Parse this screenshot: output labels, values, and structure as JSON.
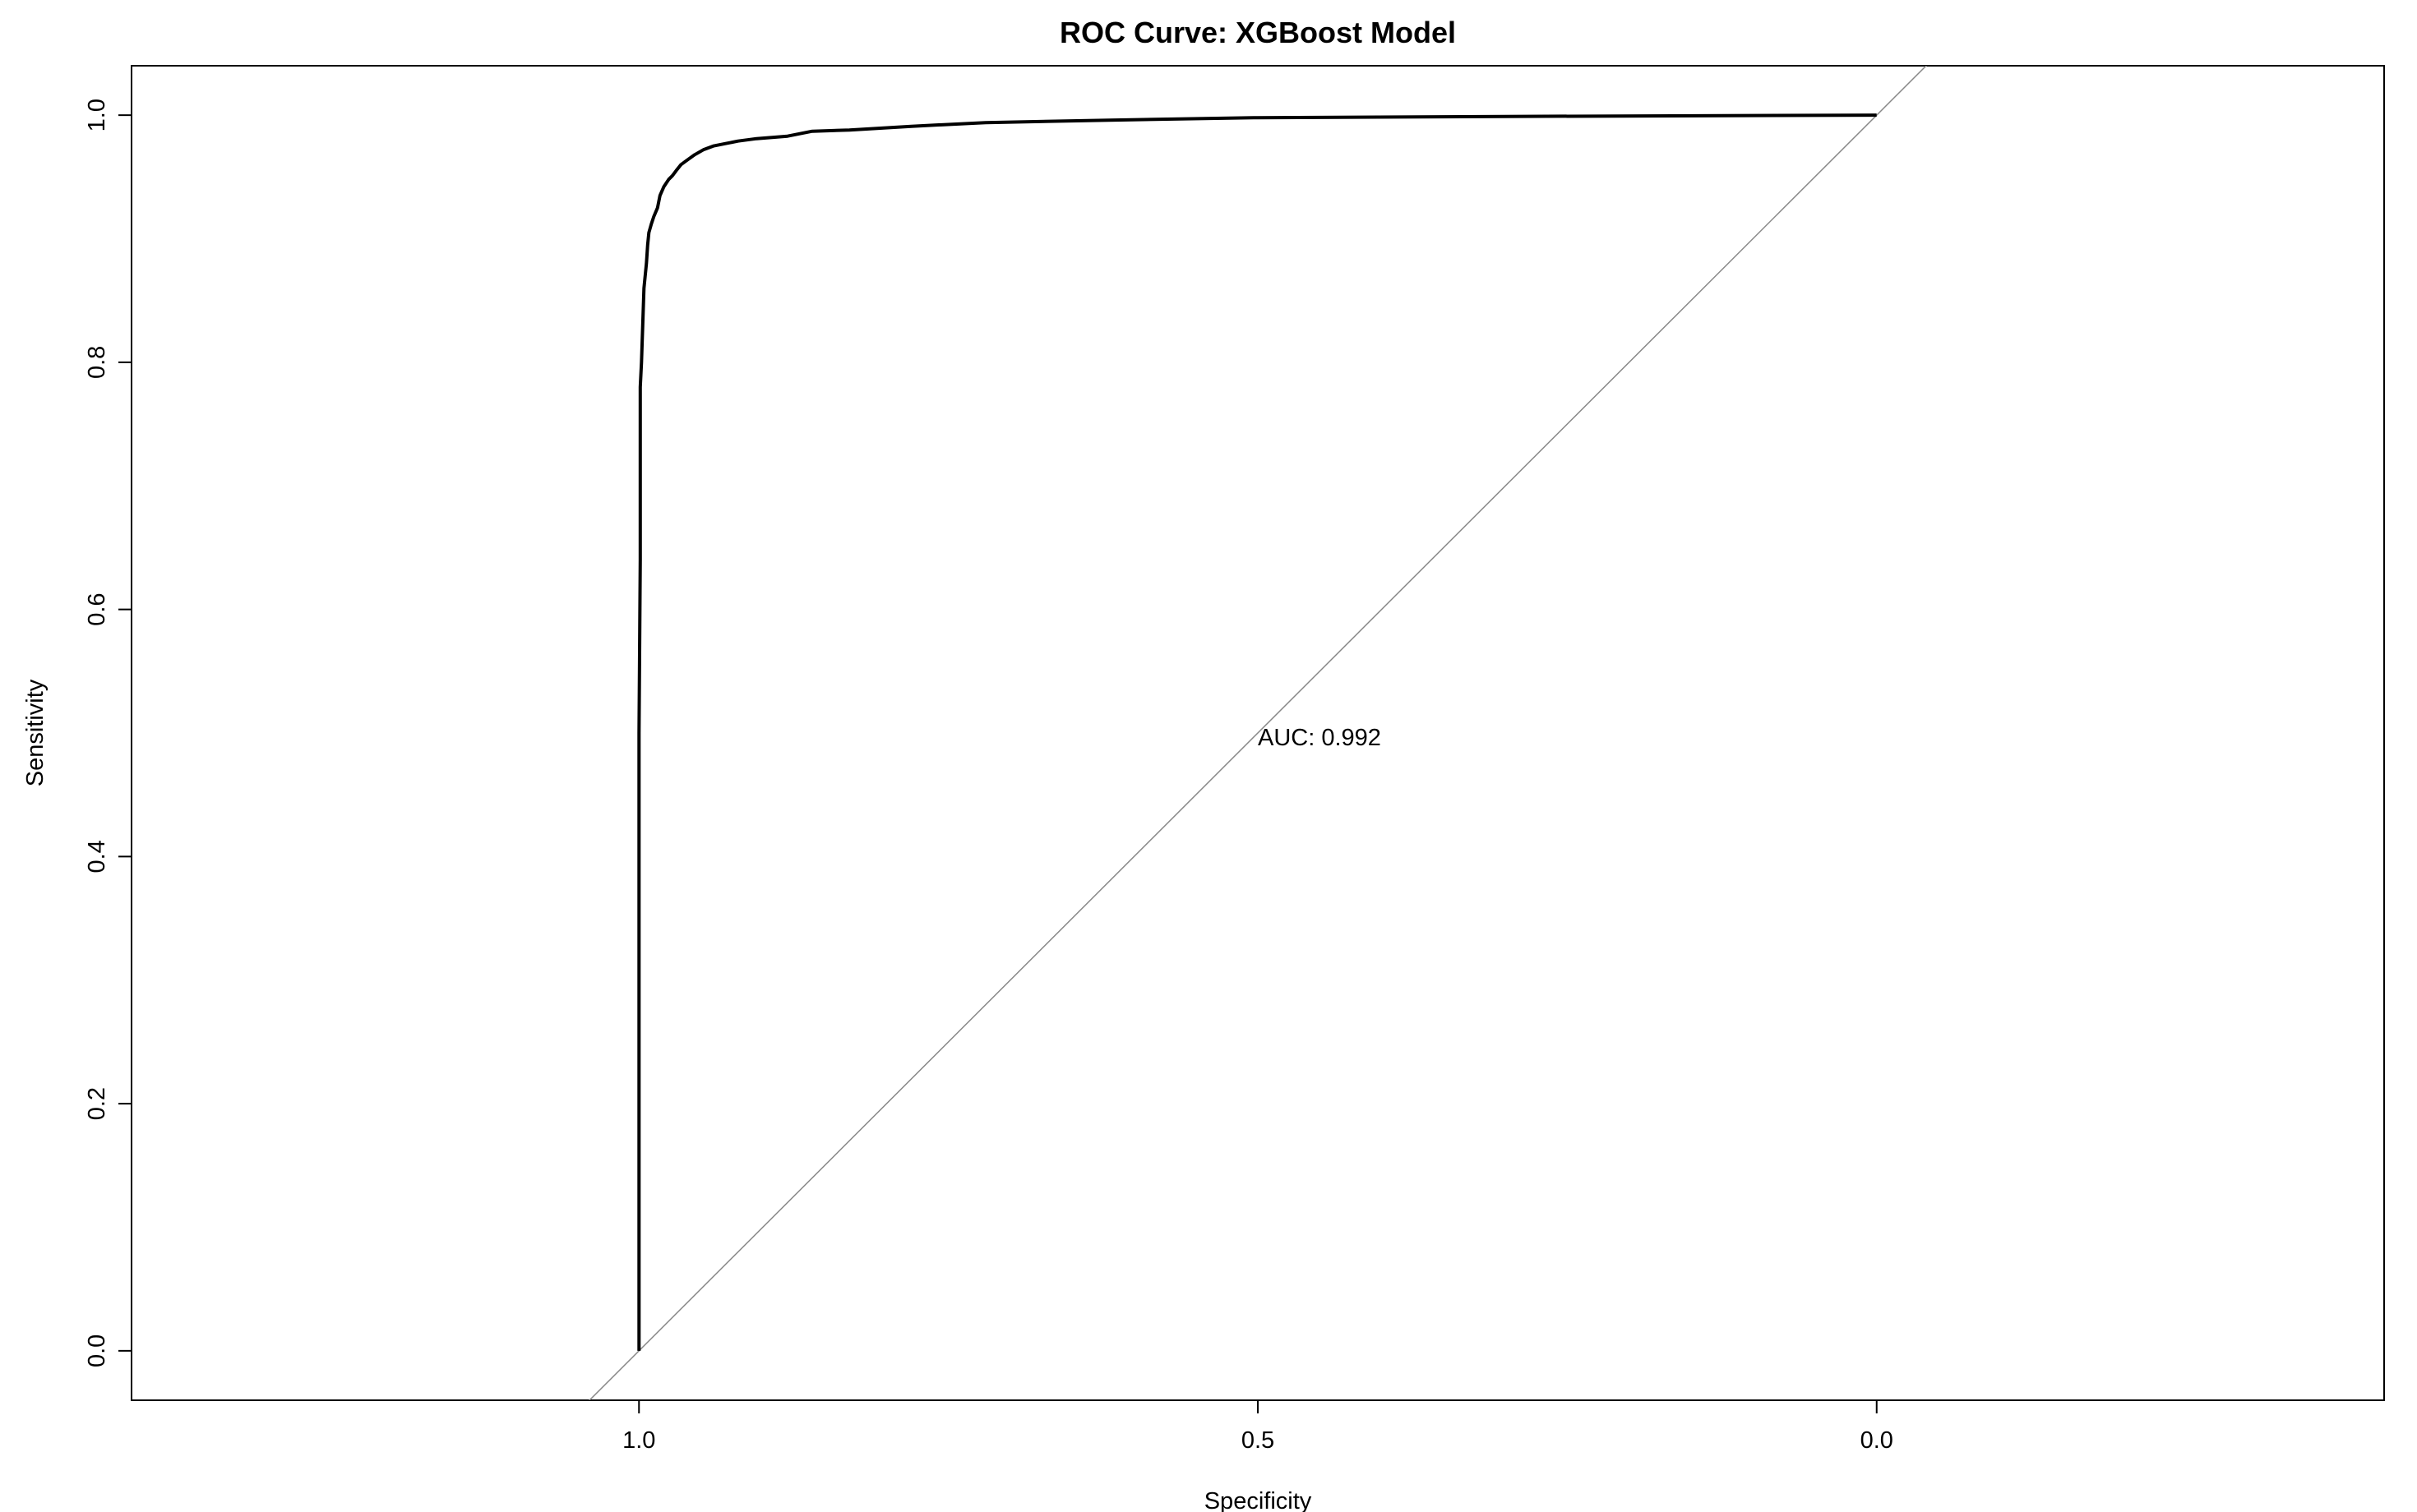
{
  "chart_data": {
    "type": "line",
    "title": "ROC Curve: XGBoost Model",
    "xlabel": "Specificity",
    "ylabel": "Sensitivity",
    "x_reversed": true,
    "xlim": [
      1.41,
      -0.41
    ],
    "ylim": [
      -0.04,
      1.04
    ],
    "x_ticks": [
      1.0,
      0.5,
      0.0
    ],
    "x_tick_labels": [
      "1.0",
      "0.5",
      "0.0"
    ],
    "y_ticks": [
      0.0,
      0.2,
      0.4,
      0.6,
      0.8,
      1.0
    ],
    "y_tick_labels": [
      "0.0",
      "0.2",
      "0.4",
      "0.6",
      "0.8",
      "1.0"
    ],
    "grid": false,
    "annotation": "AUC: 0.992",
    "annotation_at": {
      "specificity": 0.5,
      "sensitivity": 0.49
    },
    "reference_line": {
      "name": "chance diagonal",
      "color": "#888888"
    },
    "series": [
      {
        "color": "#000000",
        "specificity": [
          1.0,
          1.0,
          1.0,
          0.999,
          0.999,
          0.999,
          0.998,
          0.997,
          0.996,
          0.995,
          0.994,
          0.993,
          0.992,
          0.99,
          0.988,
          0.985,
          0.983,
          0.98,
          0.976,
          0.973,
          0.97,
          0.966,
          0.962,
          0.955,
          0.948,
          0.94,
          0.93,
          0.92,
          0.905,
          0.88,
          0.86,
          0.83,
          0.78,
          0.72,
          0.62,
          0.5,
          0.3,
          0.0
        ],
        "sensitivity": [
          0.0,
          0.2,
          0.5,
          0.64,
          0.72,
          0.78,
          0.8,
          0.83,
          0.86,
          0.87,
          0.88,
          0.895,
          0.905,
          0.912,
          0.918,
          0.925,
          0.935,
          0.942,
          0.948,
          0.951,
          0.955,
          0.96,
          0.963,
          0.968,
          0.972,
          0.975,
          0.977,
          0.979,
          0.981,
          0.983,
          0.987,
          0.988,
          0.991,
          0.994,
          0.996,
          0.998,
          0.999,
          1.0
        ]
      }
    ]
  }
}
